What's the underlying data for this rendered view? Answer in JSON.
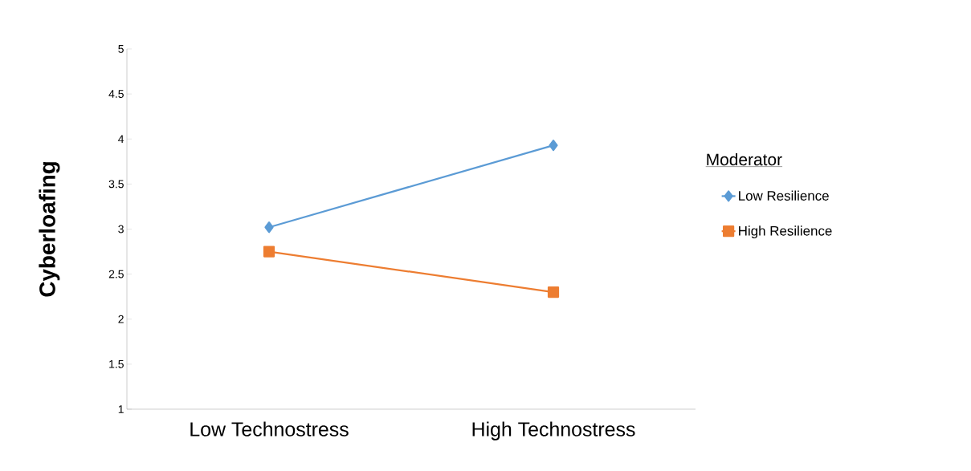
{
  "chart_data": {
    "type": "line",
    "ylabel": "Cyberloafing",
    "legend_title": "Moderator",
    "categories": [
      "Low Technostress",
      "High Technostress"
    ],
    "series": [
      {
        "name": "Low Resilience",
        "color": "#5b9bd5",
        "marker": "diamond",
        "values": [
          3.02,
          3.93
        ]
      },
      {
        "name": "High Resilience",
        "color": "#ed7d31",
        "marker": "square",
        "values": [
          2.75,
          2.3
        ]
      }
    ],
    "ylim": [
      1,
      5
    ],
    "yticks": [
      1,
      1.5,
      2,
      2.5,
      3,
      3.5,
      4,
      4.5,
      5
    ],
    "grid": false,
    "legend": "right",
    "line_style": "solid"
  }
}
